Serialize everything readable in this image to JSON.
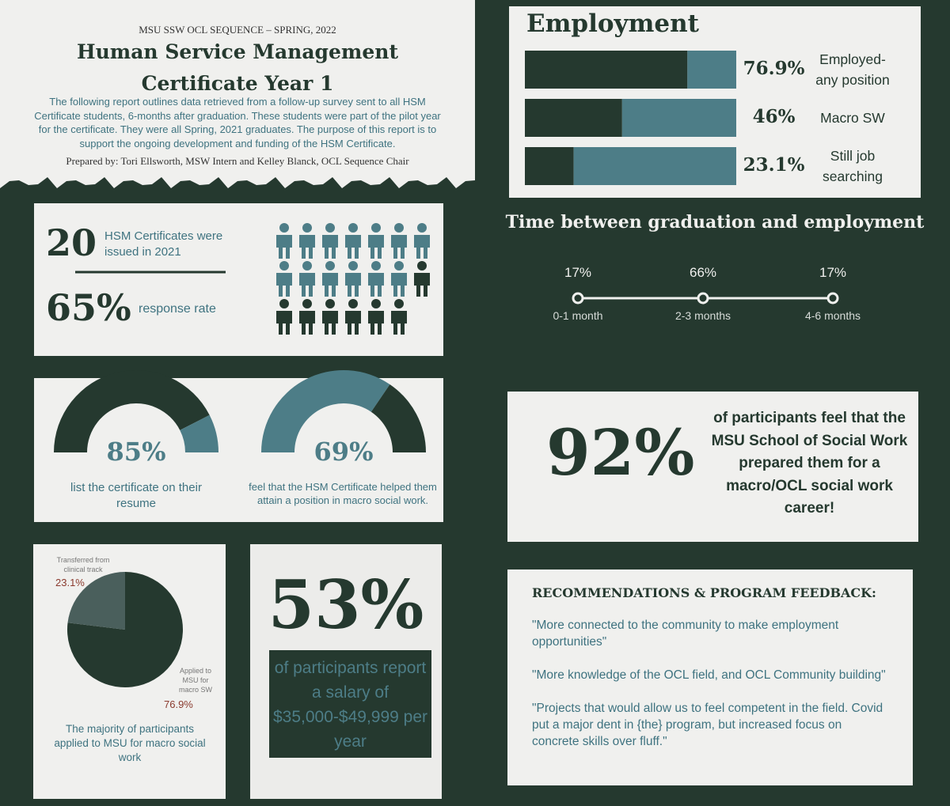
{
  "header": {
    "kicker": "MSU SSW OCL SEQUENCE  – SPRING, 2022",
    "title": "Human Service Management Certificate Year 1",
    "intro": "The following report outlines data retrieved from a follow-up survey sent to all HSM Certificate students, 6-months after graduation. These students were part of the pilot year for the certificate. They were all Spring, 2021 graduates. The purpose of this report is to support the ongoing development and funding of the HSM Certificate.",
    "byline": "Prepared by: Tori Ellsworth, MSW Intern and Kelley Blanck, OCL Sequence Chair"
  },
  "certificates": {
    "issued": 20,
    "issued_text": "HSM Certificates were issued in 2021",
    "response_rate": 65,
    "response_rate_label": "65%",
    "response_text": "response rate",
    "responded_color": "#4d7d87",
    "other_color": "#25392f"
  },
  "gauges": [
    {
      "value": 85,
      "label": "85%",
      "caption": "list the certificate on their resume",
      "fill_color": "#25392f",
      "rest_color": "#4d7d87"
    },
    {
      "value": 69,
      "label": "69%",
      "caption": "feel that the HSM Certificate helped them attain a position in macro social work.",
      "fill_color": "#4d7d87",
      "rest_color": "#25392f"
    }
  ],
  "pie": {
    "slices": [
      {
        "name": "Applied to MSU for macro SW",
        "value": 76.9,
        "label": "76.9%",
        "color": "#25392f"
      },
      {
        "name": "Transferred from clinical track",
        "value": 23.1,
        "label": "23.1%",
        "color": "#4a5f5c"
      }
    ],
    "caption": "The majority of participants applied to MSU for macro social work"
  },
  "salary": {
    "big": "53%",
    "text": "of participants report a salary of $35,000-$49,999 per year"
  },
  "employment": {
    "title": "Employment",
    "bars": [
      {
        "value": 76.9,
        "label": "76.9%",
        "name": "Employed- any position"
      },
      {
        "value": 46,
        "label": "46%",
        "name": "Macro SW"
      },
      {
        "value": 23.1,
        "label": "23.1%",
        "name": "Still job searching"
      }
    ],
    "value_color": "#25392f",
    "rest_color": "#4d7d87",
    "xlim": [
      0,
      100
    ]
  },
  "timeline": {
    "title": "Time between graduation and employment",
    "points": [
      {
        "share": "17%",
        "period": "0-1 month"
      },
      {
        "share": "66%",
        "period": "2-3 months"
      },
      {
        "share": "17%",
        "period": "4-6 months"
      }
    ]
  },
  "callout": {
    "big": "92%",
    "text": "of participants feel that the MSU School of Social Work prepared them for a macro/OCL social work career!"
  },
  "recommendations": {
    "title": "RECOMMENDATIONS & PROGRAM FEEDBACK:",
    "quotes": [
      "\"More connected to the community to make employment opportunities\"",
      "\"More knowledge of the OCL field, and OCL Community building\"",
      "\"Projects that would allow us to feel competent in the field. Covid put a major dent in {the} program, but increased focus on concrete skills over fluff.\""
    ]
  }
}
